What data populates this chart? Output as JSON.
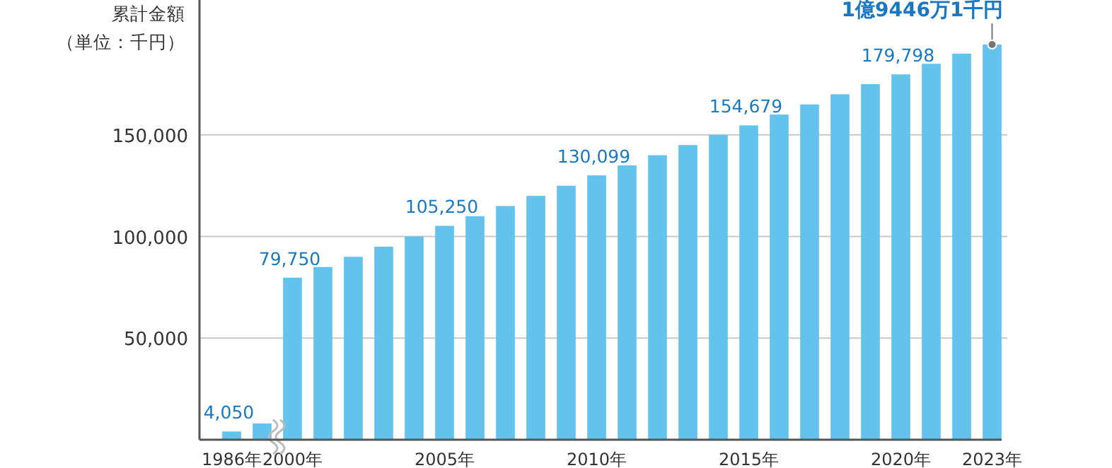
{
  "chart_data": {
    "type": "bar",
    "ylabel": "累計金額（単位：千円）",
    "categories": [
      "1986年",
      null,
      "2000年",
      null,
      null,
      null,
      null,
      "2005年",
      null,
      null,
      null,
      null,
      "2010年",
      null,
      null,
      null,
      null,
      "2015年",
      null,
      null,
      null,
      null,
      "2020年",
      null,
      null,
      "2023年"
    ],
    "values": [
      4050,
      8000,
      79750,
      85000,
      90000,
      95000,
      100000,
      105250,
      110000,
      115000,
      120000,
      125000,
      130099,
      135000,
      140000,
      145000,
      150000,
      154679,
      160000,
      165000,
      170000,
      175000,
      179798,
      185000,
      190000,
      194461
    ],
    "value_labels": [
      "4,050",
      null,
      "79,750",
      null,
      null,
      null,
      null,
      "105,250",
      null,
      null,
      null,
      null,
      "130,099",
      null,
      null,
      null,
      null,
      "154,679",
      null,
      null,
      null,
      null,
      "179,798",
      null,
      null,
      null
    ],
    "color": "#63c3ec",
    "ylim": [
      0,
      215000
    ],
    "yticks": [
      {
        "value": 50000,
        "label": "50,000"
      },
      {
        "value": 100000,
        "label": "100,000"
      },
      {
        "value": 150000,
        "label": "150,000"
      }
    ],
    "grid": "y",
    "annotations": [
      {
        "text": "1億9446万1千円",
        "x": "2023年",
        "y": 194461
      }
    ]
  }
}
